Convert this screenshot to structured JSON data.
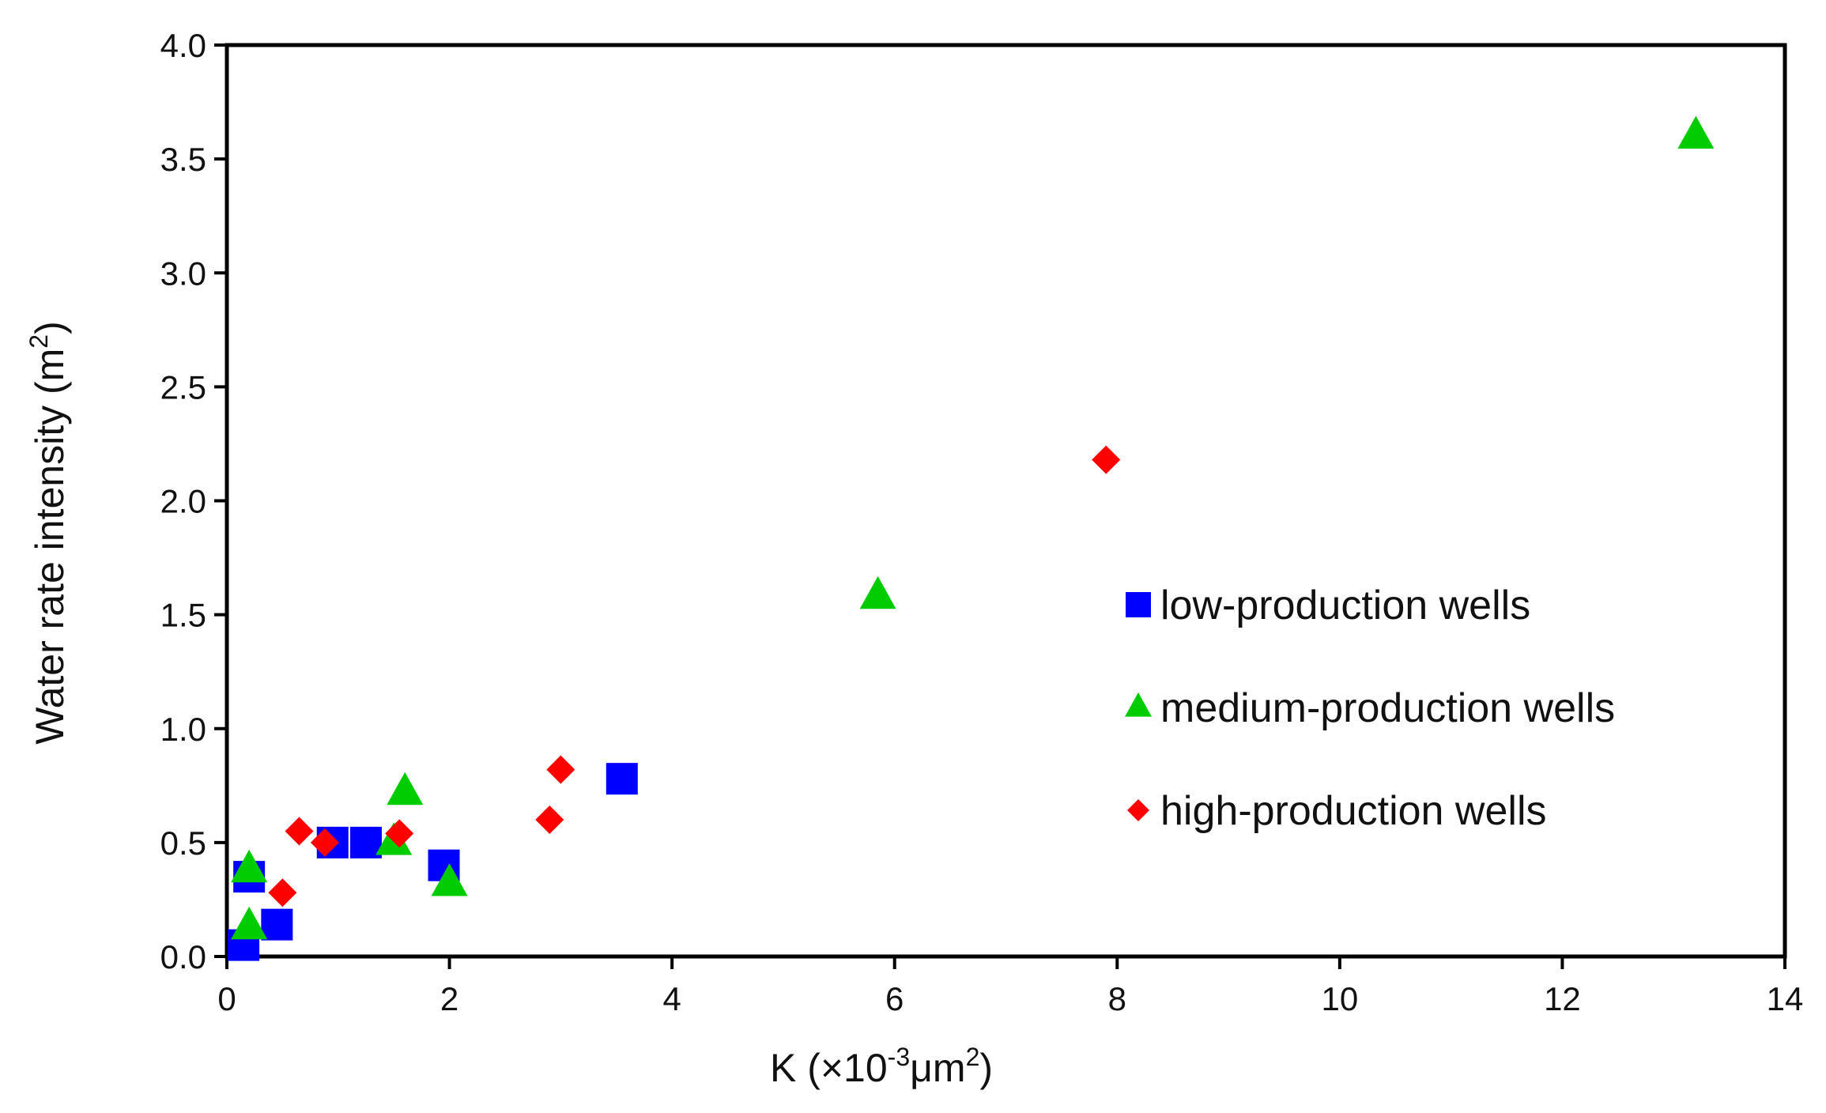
{
  "chart_data": {
    "type": "scatter",
    "title": "",
    "xlabel": "K (×10-3μm2)",
    "xlabel_parts": {
      "pre": "K (×10",
      "sup1": "-3",
      "mid": "μm",
      "sup2": "2",
      "post": ")"
    },
    "ylabel": "Water rate intensity (m2)",
    "ylabel_parts": {
      "pre": "Water rate intensity (m",
      "sup": "2",
      "post": ")"
    },
    "xlim": [
      0,
      14
    ],
    "ylim": [
      0,
      4
    ],
    "xticks": [
      "0",
      "2",
      "4",
      "6",
      "8",
      "10",
      "12",
      "14"
    ],
    "xtick_values": [
      0,
      2,
      4,
      6,
      8,
      10,
      12,
      14
    ],
    "yticks": [
      "0.0",
      "0.5",
      "1.0",
      "1.5",
      "2.0",
      "2.5",
      "3.0",
      "3.5",
      "4.0"
    ],
    "ytick_values": [
      0,
      0.5,
      1.0,
      1.5,
      2.0,
      2.5,
      3.0,
      3.5,
      4.0
    ],
    "legend_position": "center-right",
    "series": [
      {
        "name": "low-production wells",
        "marker": "square",
        "color": "#0000ff",
        "points": [
          {
            "x": 0.15,
            "y": 0.05
          },
          {
            "x": 0.2,
            "y": 0.35
          },
          {
            "x": 0.45,
            "y": 0.14
          },
          {
            "x": 0.95,
            "y": 0.5
          },
          {
            "x": 1.25,
            "y": 0.5
          },
          {
            "x": 1.95,
            "y": 0.4
          },
          {
            "x": 3.55,
            "y": 0.78
          }
        ]
      },
      {
        "name": "medium-production wells",
        "marker": "triangle",
        "color": "#00cc00",
        "points": [
          {
            "x": 0.2,
            "y": 0.38
          },
          {
            "x": 0.2,
            "y": 0.13
          },
          {
            "x": 1.5,
            "y": 0.5
          },
          {
            "x": 1.6,
            "y": 0.72
          },
          {
            "x": 2.0,
            "y": 0.32
          },
          {
            "x": 5.85,
            "y": 1.58
          },
          {
            "x": 13.2,
            "y": 3.6
          }
        ]
      },
      {
        "name": "high-production wells",
        "marker": "diamond",
        "color": "#ff0000",
        "points": [
          {
            "x": 0.5,
            "y": 0.28
          },
          {
            "x": 0.65,
            "y": 0.55
          },
          {
            "x": 0.88,
            "y": 0.5
          },
          {
            "x": 1.55,
            "y": 0.54
          },
          {
            "x": 2.9,
            "y": 0.6
          },
          {
            "x": 3.0,
            "y": 0.82
          },
          {
            "x": 7.9,
            "y": 2.18
          }
        ]
      }
    ]
  }
}
